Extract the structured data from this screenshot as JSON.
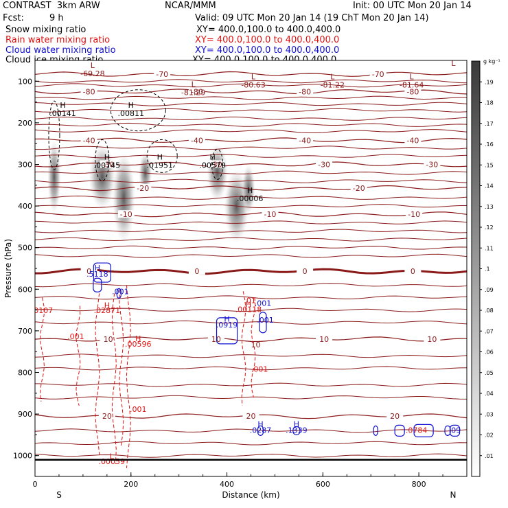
{
  "header": {
    "title": "CONTRAST  3km ARW",
    "center": "NCAR/MMM",
    "init": "Init: 00 UTC Mon 20 Jan 14",
    "fcst_label": "Fcst:",
    "fcst_value": "9 h",
    "valid": "Valid: 09 UTC Mon 20 Jan 14 (19 ChT Mon 20 Jan 14)"
  },
  "legend": [
    {
      "label": "Snow mixing ratio",
      "xy": "XY= 400.0,100.0 to 400.0,400.0",
      "color": "#000000"
    },
    {
      "label": "Rain water mixing ratio",
      "xy": "XY= 400.0,100.0 to 400.0,400.0",
      "color": "#e01010"
    },
    {
      "label": "Cloud water mixing ratio",
      "xy": "XY= 400.0,100.0 to 400.0,400.0",
      "color": "#1010d0"
    },
    {
      "label": "Cloud ice mixing ratio",
      "xy": "XY= 400.0,100.0 to 400.0,400.0",
      "color": "#000000"
    }
  ],
  "colors": {
    "temperature": "#8b1a1a",
    "rain": "#e01010",
    "cloud": "#1010d0",
    "ice": "#000000"
  },
  "chart_data": {
    "type": "heatmap",
    "xlabel": "Distance (km)",
    "ylabel": "Pressure (hPa)",
    "xlim": [
      0,
      900
    ],
    "ylim": [
      1050,
      50
    ],
    "xticks": [
      "0",
      "200",
      "400",
      "600",
      "800"
    ],
    "yticks": [
      "100",
      "200",
      "300",
      "400",
      "500",
      "600",
      "700",
      "800",
      "900",
      "1000"
    ],
    "x_end_labels": {
      "left": "S",
      "right": "N"
    },
    "colorbar": {
      "unit": "g kg⁻¹",
      "ticks": [
        ".01",
        ".02",
        ".03",
        ".04",
        ".05",
        ".06",
        ".07",
        ".08",
        ".09",
        ".1",
        ".11",
        ".12",
        ".13",
        ".14",
        ".15",
        ".16",
        ".17",
        ".18",
        ".19"
      ]
    },
    "temperature_isotherms": [
      {
        "value": -80,
        "pressure": 125,
        "labels": [
          "-80",
          "-80",
          "-80",
          "-80"
        ]
      },
      {
        "value": -70,
        "pressure": 83,
        "labels": [
          "-70",
          "-70"
        ]
      },
      {
        "value": -40,
        "pressure": 242,
        "labels": [
          "-40",
          "-40",
          "-40",
          "-40"
        ]
      },
      {
        "value": -30,
        "pressure": 300,
        "labels": [
          "-30",
          "-30",
          "-30",
          "-30"
        ]
      },
      {
        "value": -20,
        "pressure": 357,
        "labels": [
          "-20",
          "-20"
        ]
      },
      {
        "value": -10,
        "pressure": 420,
        "labels": [
          "-10",
          "-10",
          "-10"
        ]
      },
      {
        "value": 0,
        "pressure": 557,
        "labels": [
          "0",
          "0",
          "0",
          "0"
        ]
      },
      {
        "value": 10,
        "pressure": 720,
        "labels": [
          "10",
          "10",
          "10",
          "10"
        ]
      },
      {
        "value": 20,
        "pressure": 905,
        "labels": [
          "20",
          "20",
          "20"
        ]
      }
    ],
    "temperature_extrema": [
      {
        "kind": "L",
        "value": "-69.28",
        "x": 120,
        "p": 85
      },
      {
        "kind": "L",
        "value": "-81.29",
        "x": 330,
        "p": 130
      },
      {
        "kind": "L",
        "value": "-80.63",
        "x": 455,
        "p": 112
      },
      {
        "kind": "L",
        "value": "-81.22",
        "x": 620,
        "p": 112
      },
      {
        "kind": "L",
        "value": "-81.64",
        "x": 785,
        "p": 112
      },
      {
        "kind": "L",
        "value": "",
        "x": 872,
        "p": 80
      }
    ],
    "snow_maxima": [
      {
        "value": ".00141",
        "x": 58,
        "p": 180
      },
      {
        "value": ".00811",
        "x": 200,
        "p": 180
      },
      {
        "value": ".00745",
        "x": 150,
        "p": 305
      },
      {
        "value": ".01951",
        "x": 260,
        "p": 305
      },
      {
        "value": ".00579",
        "x": 370,
        "p": 305
      },
      {
        "value": ".00006",
        "x": 448,
        "p": 385
      }
    ],
    "rain_labels": [
      {
        "value": ".0107",
        "x": 15,
        "p": 657
      },
      {
        "value": ".02871",
        "x": 150,
        "p": 657
      },
      {
        "value": ".00596",
        "x": 215,
        "p": 738
      },
      {
        "value": ".001",
        "x": 85,
        "p": 720
      },
      {
        "value": ".001",
        "x": 215,
        "p": 895
      },
      {
        "value": ".00059",
        "x": 160,
        "p": 1020
      },
      {
        "value": ".00118",
        "x": 445,
        "p": 655
      },
      {
        "value": ".001",
        "x": 468,
        "p": 798
      },
      {
        "value": ".01",
        "x": 448,
        "p": 633
      },
      {
        "value": ".0784",
        "x": 795,
        "p": 945
      }
    ],
    "cloud_labels": [
      {
        "value": ".5118",
        "x": 130,
        "p": 570
      },
      {
        "value": ".001",
        "x": 178,
        "p": 612
      },
      {
        "value": ".0919",
        "x": 400,
        "p": 692
      },
      {
        "value": ".001",
        "x": 475,
        "p": 640
      },
      {
        "value": ".001",
        "x": 480,
        "p": 680
      },
      {
        "value": ".0287",
        "x": 470,
        "p": 945
      },
      {
        "value": ".1339",
        "x": 545,
        "p": 945
      },
      {
        "value": ".09",
        "x": 875,
        "p": 945
      }
    ],
    "ice_labels": [
      {
        "value": "10",
        "x": 460,
        "p": 740
      }
    ]
  }
}
